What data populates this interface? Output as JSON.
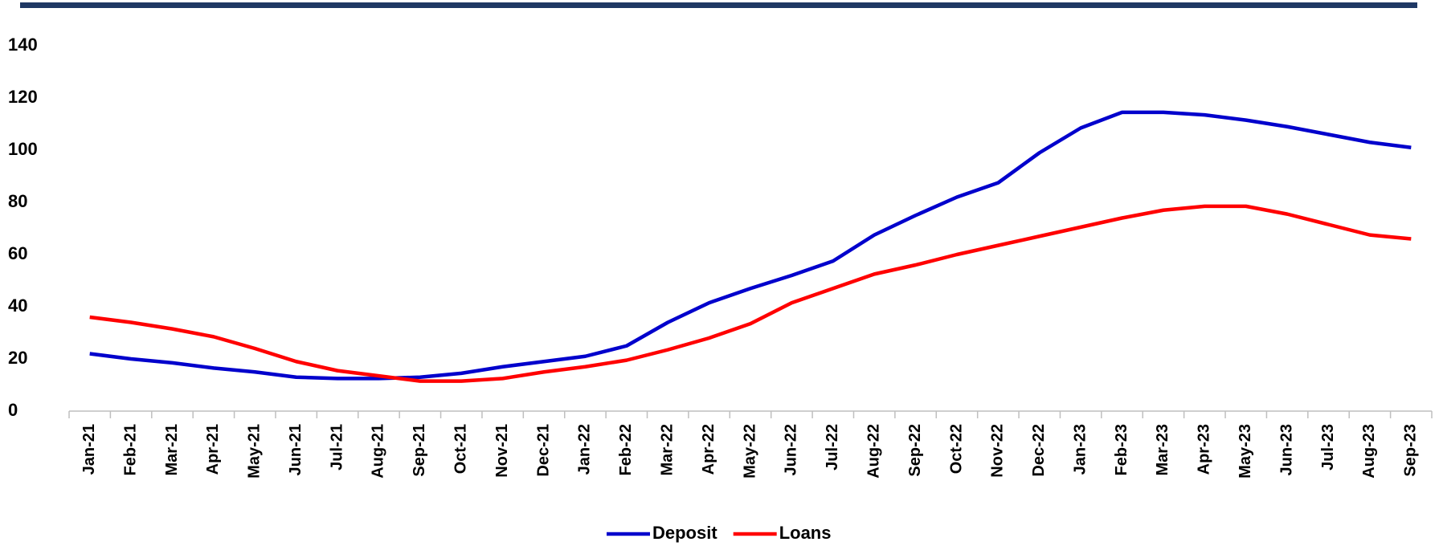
{
  "chart_data": {
    "type": "line",
    "categories": [
      "Jan-21",
      "Feb-21",
      "Mar-21",
      "Apr-21",
      "May-21",
      "Jun-21",
      "Jul-21",
      "Aug-21",
      "Sep-21",
      "Oct-21",
      "Nov-21",
      "Dec-21",
      "Jan-22",
      "Feb-22",
      "Mar-22",
      "Apr-22",
      "May-22",
      "Jun-22",
      "Jul-22",
      "Aug-22",
      "Sep-22",
      "Oct-22",
      "Nov-22",
      "Dec-22",
      "Jan-23",
      "Feb-23",
      "Mar-23",
      "Apr-23",
      "May-23",
      "Jun-23",
      "Jul-23",
      "Aug-23",
      "Sep-23"
    ],
    "series": [
      {
        "name": "Deposit",
        "color": "#0000cc",
        "values": [
          22,
          20,
          18.5,
          16.5,
          15,
          13,
          12.5,
          12.5,
          13,
          14.5,
          17,
          19,
          21,
          25,
          34,
          41.5,
          47,
          52,
          57.5,
          67.5,
          75,
          82,
          87.5,
          99,
          108.5,
          114.5,
          114.5,
          113.5,
          111.5,
          109,
          106,
          103,
          101
        ]
      },
      {
        "name": "Loans",
        "color": "#ff0000",
        "values": [
          36,
          34,
          31.5,
          28.5,
          24,
          19,
          15.5,
          13.5,
          11.5,
          11.5,
          12.5,
          15,
          17,
          19.5,
          23.5,
          28,
          33.5,
          41.5,
          47,
          52.5,
          56,
          60,
          63.5,
          67,
          70.5,
          74,
          77,
          78.5,
          78.5,
          75.5,
          71.5,
          67.5,
          66
        ]
      }
    ],
    "ylim": [
      0,
      140
    ],
    "yticks": [
      0,
      20,
      40,
      60,
      80,
      100,
      120,
      140
    ],
    "legend": "bottom"
  }
}
